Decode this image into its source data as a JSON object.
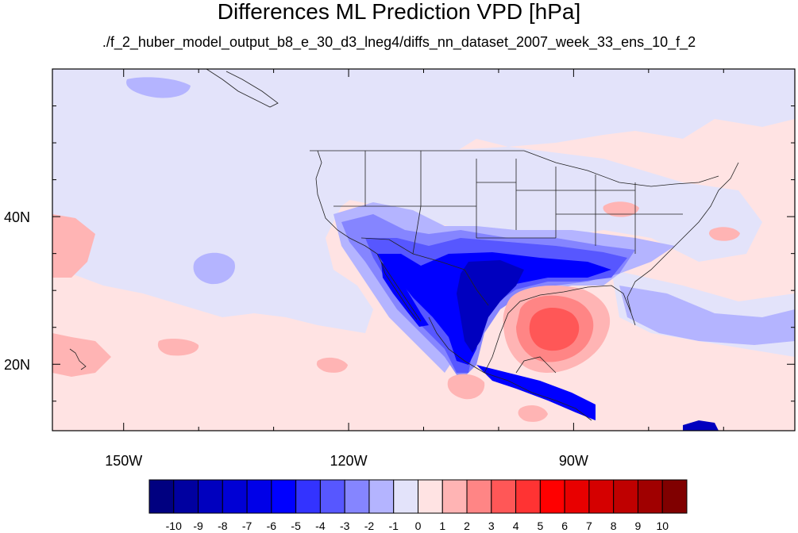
{
  "title": "Differences ML Prediction VPD [hPa]",
  "subtitle": "./f_2_huber_model_output_b8_e_30_d3_lneg4/diffs_nn_dataset_2007_week_33_ens_10_f_2",
  "axes": {
    "lon_ticks": [
      {
        "label": "150W",
        "lon": -150
      },
      {
        "label": "120W",
        "lon": -120
      },
      {
        "label": "90W",
        "lon": -90
      }
    ],
    "lat_ticks": [
      {
        "label": "40N",
        "lat": 40
      },
      {
        "label": "20N",
        "lat": 20
      }
    ],
    "lon_range": [
      -159.5,
      -60.5
    ],
    "lat_range": [
      11,
      60
    ]
  },
  "colorbar": {
    "labels": [
      "-10",
      "-9",
      "-8",
      "-7",
      "-6",
      "-5",
      "-4",
      "-3",
      "-2",
      "-1",
      "0",
      "1",
      "2",
      "3",
      "4",
      "5",
      "6",
      "7",
      "8",
      "9",
      "10"
    ],
    "colors": [
      "#000080",
      "#0000a0",
      "#0000bf",
      "#0000d5",
      "#0000e8",
      "#0000ff",
      "#3333ff",
      "#5757ff",
      "#8585ff",
      "#b4b4ff",
      "#e3e3fa",
      "#ffe3e3",
      "#ffb4b4",
      "#ff8585",
      "#ff5757",
      "#ff3333",
      "#ff0000",
      "#e80000",
      "#d50000",
      "#bf0000",
      "#a00000",
      "#800000"
    ]
  },
  "map_colors": {
    "ocean_neutral_pos": "#ffe3e3",
    "neutral_neg": "#e3e3fa",
    "light_blue": "#b4b4ff",
    "mid_blue": "#8585ff",
    "blue": "#5757ff",
    "strong_blue": "#0000ff",
    "dark_blue": "#0000bf",
    "light_red": "#ffb4b4",
    "mid_red": "#ff8585",
    "red": "#ff5757"
  }
}
